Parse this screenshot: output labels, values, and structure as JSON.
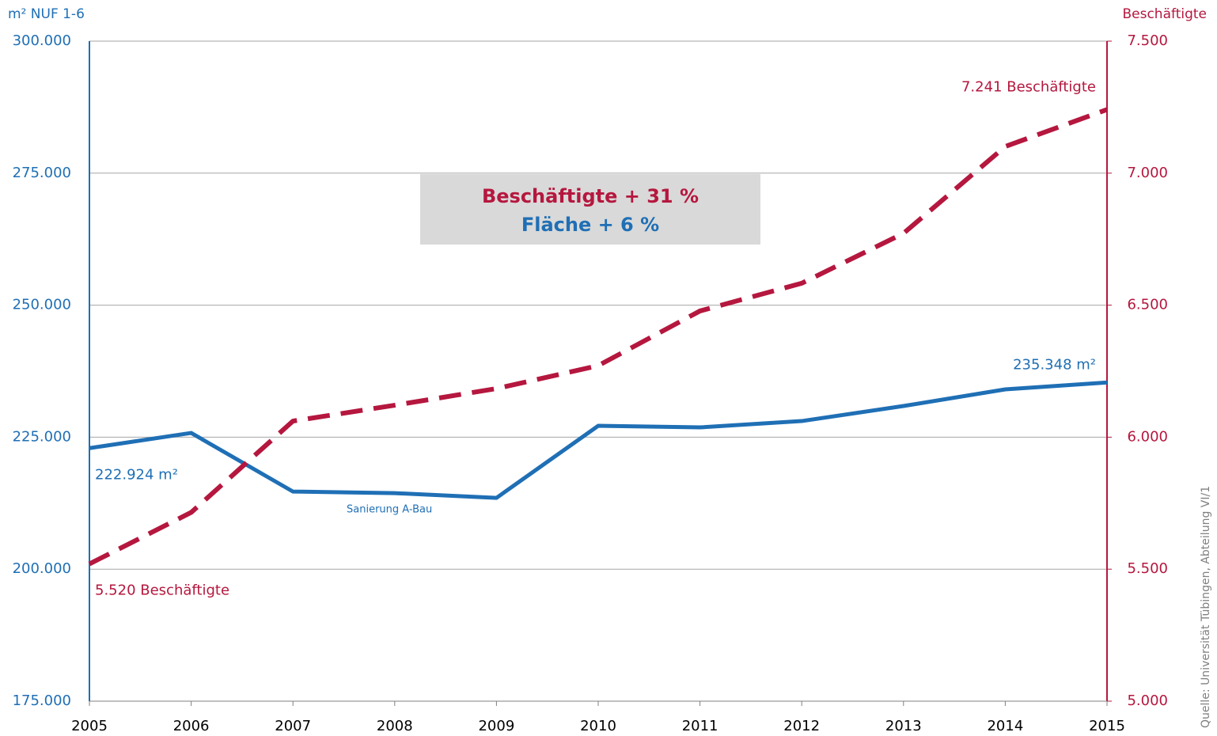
{
  "chart_data": {
    "type": "line",
    "y_label": "m² NUF 1-6",
    "y2_label": "Beschäftigte",
    "categories": [
      "2005",
      "2006",
      "2007",
      "2008",
      "2009",
      "2010",
      "2011",
      "2012",
      "2013",
      "2014",
      "2015"
    ],
    "series": [
      {
        "color": "#1f6fb5",
        "dashed": false,
        "axis": "y",
        "values": [
          222924,
          225800,
          214700,
          214400,
          213500,
          227150,
          226850,
          228050,
          230900,
          234050,
          235348
        ],
        "value_labels": [
          "222.924 m²",
          null,
          null,
          null,
          null,
          null,
          null,
          null,
          null,
          null,
          "235.348 m²"
        ]
      },
      {
        "color": "#b5173e",
        "dashed": true,
        "axis": "y2",
        "values": [
          5520,
          5715,
          6061,
          6121,
          6184,
          6271,
          6478,
          6583,
          6772,
          7101,
          7241
        ],
        "value_labels": [
          "5.520 Beschäftigte",
          null,
          null,
          null,
          null,
          null,
          null,
          null,
          null,
          null,
          "7.241 Beschäftigte"
        ]
      }
    ],
    "ylim": [
      175000,
      300000
    ],
    "yticks": [
      {
        "value": 175000,
        "label": "175.000"
      },
      {
        "value": 200000,
        "label": "200.000"
      },
      {
        "value": 225000,
        "label": "225.000"
      },
      {
        "value": 250000,
        "label": "250.000"
      },
      {
        "value": 275000,
        "label": "275.000"
      },
      {
        "value": 300000,
        "label": "300.000"
      }
    ],
    "y2lim": [
      5000,
      7500
    ],
    "y2ticks": [
      {
        "value": 5000,
        "label": "5.000"
      },
      {
        "value": 5500,
        "label": "5.500"
      },
      {
        "value": 6000,
        "label": "6.000"
      },
      {
        "value": 6500,
        "label": "6.500"
      },
      {
        "value": 7000,
        "label": "7.000"
      },
      {
        "value": 7500,
        "label": "7.500"
      }
    ],
    "grid": true,
    "annotations": {
      "note": "Sanierung A-Bau",
      "box_line1": "Beschäftigte   + 31 %",
      "box_line2": "Fläche  + 6 %",
      "source": "Quelle: Universität Tübingen, Abteilung VI/1"
    }
  }
}
